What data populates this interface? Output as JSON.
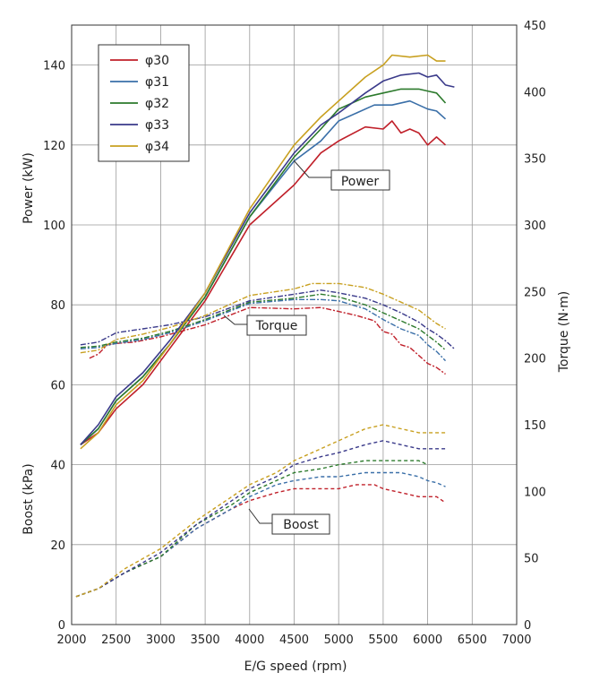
{
  "chart_data": {
    "type": "line",
    "xlabel": "E/G speed (rpm)",
    "ylabel_left_upper": "Power (kW)",
    "ylabel_left_lower": "Boost (kPa)",
    "ylabel_right": "Torque (N·m)",
    "xlim": [
      2000,
      7000
    ],
    "x_ticks": [
      2000,
      2500,
      3000,
      3500,
      4000,
      4500,
      5000,
      5500,
      6000,
      6500,
      7000
    ],
    "left_ticks": [
      0,
      20,
      40,
      60,
      80,
      100,
      120,
      140
    ],
    "right_ticks": [
      0,
      50,
      100,
      150,
      200,
      250,
      300,
      350,
      400,
      450
    ],
    "left_ylim": [
      0,
      150
    ],
    "right_ylim": [
      0,
      450
    ],
    "grid": true,
    "legend_position": "top-left",
    "callouts": [
      {
        "id": "power",
        "label": "Power"
      },
      {
        "id": "torque",
        "label": "Torque"
      },
      {
        "id": "boost",
        "label": "Boost"
      }
    ],
    "colors": {
      "phi30": "#c0202a",
      "phi31": "#3a6fa8",
      "phi32": "#2c7a2c",
      "phi33": "#3a3a8a",
      "phi34": "#c8a020"
    },
    "series": [
      {
        "name": "φ30",
        "key": "phi30",
        "power": {
          "x": [
            2100,
            2300,
            2500,
            2800,
            3100,
            3500,
            4000,
            4500,
            4800,
            5000,
            5300,
            5500,
            5600,
            5700,
            5800,
            5900,
            6000,
            6100,
            6200
          ],
          "y": [
            45,
            48,
            54,
            60,
            69,
            81,
            100,
            110,
            118,
            121,
            124.5,
            124,
            126,
            123,
            124,
            123,
            120,
            122,
            120
          ]
        },
        "torque": {
          "x": [
            2200,
            2300,
            2400,
            2500,
            2700,
            3000,
            3500,
            4000,
            4500,
            4800,
            5000,
            5200,
            5400,
            5500,
            5600,
            5700,
            5800,
            5900,
            6000,
            6100,
            6200
          ],
          "y": [
            200,
            203,
            210,
            211,
            212,
            216,
            225,
            238,
            237,
            238,
            235,
            232,
            228,
            220,
            218,
            210,
            208,
            202,
            196,
            193,
            188
          ]
        },
        "boost": {
          "x": [
            2050,
            2300,
            2600,
            3000,
            3400,
            3800,
            4000,
            4300,
            4500,
            4800,
            5000,
            5200,
            5400,
            5500,
            5700,
            5900,
            6000,
            6100,
            6200
          ],
          "y": [
            7,
            9,
            13,
            17,
            24,
            29,
            31,
            33,
            34,
            34,
            34,
            35,
            35,
            34,
            33,
            32,
            32,
            32,
            30.5
          ]
        }
      },
      {
        "name": "φ31",
        "key": "phi31",
        "power": {
          "x": [
            2100,
            2300,
            2500,
            2800,
            3100,
            3500,
            4000,
            4500,
            4800,
            5000,
            5200,
            5400,
            5600,
            5800,
            6000,
            6100,
            6200
          ],
          "y": [
            45,
            49,
            56,
            62,
            70,
            82,
            102,
            116,
            121,
            126,
            128,
            130,
            130,
            131,
            129,
            128.5,
            126.5
          ]
        },
        "torque": {
          "x": [
            2100,
            2300,
            2500,
            2800,
            3100,
            3500,
            4000,
            4500,
            4800,
            5000,
            5300,
            5500,
            5700,
            5900,
            6000,
            6100,
            6200
          ],
          "y": [
            207,
            208,
            211,
            214,
            219,
            228,
            241,
            244,
            244,
            243,
            237,
            229,
            222,
            217,
            210,
            205,
            198
          ]
        },
        "boost": {
          "x": [
            2050,
            2300,
            2600,
            3000,
            3400,
            3800,
            4000,
            4300,
            4500,
            4800,
            5000,
            5300,
            5500,
            5700,
            5900,
            6000,
            6100,
            6200
          ],
          "y": [
            7,
            9,
            13,
            17,
            24,
            29,
            32,
            35,
            36,
            37,
            37,
            38,
            38,
            38,
            37,
            36,
            35.5,
            34.5
          ]
        }
      },
      {
        "name": "φ32",
        "key": "phi32",
        "power": {
          "x": [
            2100,
            2300,
            2500,
            2800,
            3100,
            3500,
            4000,
            4500,
            4800,
            5000,
            5300,
            5500,
            5700,
            5900,
            6000,
            6100,
            6200
          ],
          "y": [
            45,
            49,
            56,
            62,
            70,
            82,
            102,
            117,
            124,
            129,
            132,
            133,
            134,
            134,
            133.5,
            133,
            130.5
          ]
        },
        "torque": {
          "x": [
            2100,
            2300,
            2500,
            2800,
            3100,
            3500,
            4000,
            4500,
            4800,
            5000,
            5300,
            5500,
            5700,
            5900,
            6000,
            6100,
            6200
          ],
          "y": [
            208,
            209,
            212,
            215,
            220,
            229,
            242,
            245,
            248,
            246,
            240,
            234,
            228,
            222,
            217,
            212,
            206
          ]
        },
        "boost": {
          "x": [
            2050,
            2300,
            2600,
            3000,
            3400,
            3800,
            4000,
            4300,
            4500,
            4800,
            5000,
            5300,
            5500,
            5700,
            5900,
            6000
          ],
          "y": [
            7,
            9,
            13,
            17,
            25,
            30,
            33,
            36,
            38,
            39,
            40,
            41,
            41,
            41,
            41,
            40
          ]
        }
      },
      {
        "name": "φ33",
        "key": "phi33",
        "power": {
          "x": [
            2100,
            2300,
            2500,
            2800,
            3100,
            3500,
            4000,
            4500,
            4800,
            5000,
            5300,
            5500,
            5700,
            5900,
            6000,
            6100,
            6200,
            6300
          ],
          "y": [
            45,
            50,
            57,
            63,
            71,
            83,
            103,
            118,
            125,
            128,
            133,
            136,
            137.5,
            138,
            137,
            137.5,
            135,
            134.5
          ]
        },
        "torque": {
          "x": [
            2100,
            2300,
            2500,
            2800,
            3100,
            3500,
            4000,
            4500,
            4800,
            5000,
            5300,
            5500,
            5700,
            5900,
            6000,
            6100,
            6200,
            6300
          ],
          "y": [
            210,
            212,
            219,
            222,
            225,
            231,
            243,
            248,
            251,
            249,
            245,
            240,
            234,
            227,
            222,
            218,
            213,
            207
          ]
        },
        "boost": {
          "x": [
            2050,
            2300,
            2600,
            3000,
            3400,
            3800,
            4000,
            4300,
            4500,
            4800,
            5000,
            5300,
            5500,
            5700,
            5900,
            6000,
            6100,
            6200
          ],
          "y": [
            7,
            9,
            13,
            18,
            25,
            31,
            34,
            37,
            40,
            42,
            43,
            45,
            46,
            45,
            44,
            44,
            44,
            44
          ]
        }
      },
      {
        "name": "φ34",
        "key": "phi34",
        "power": {
          "x": [
            2100,
            2300,
            2500,
            2800,
            3100,
            3500,
            4000,
            4500,
            4800,
            5000,
            5300,
            5500,
            5600,
            5800,
            6000,
            6100,
            6200
          ],
          "y": [
            44,
            48,
            55,
            61,
            70,
            83,
            104,
            120,
            127,
            131,
            137,
            140,
            142.5,
            142,
            142.5,
            141,
            141
          ]
        },
        "torque": {
          "x": [
            2100,
            2300,
            2500,
            2800,
            3100,
            3500,
            4000,
            4500,
            4700,
            5000,
            5300,
            5500,
            5700,
            5900,
            6000,
            6100,
            6200
          ],
          "y": [
            204,
            206,
            214,
            218,
            223,
            232,
            247,
            252,
            256,
            256,
            253,
            248,
            242,
            236,
            231,
            226,
            222
          ]
        },
        "boost": {
          "x": [
            2050,
            2300,
            2600,
            3000,
            3400,
            3800,
            4000,
            4300,
            4500,
            4800,
            5000,
            5300,
            5500,
            5700,
            5900,
            6000,
            6100,
            6200
          ],
          "y": [
            7,
            9,
            14,
            19,
            26,
            32,
            35,
            38,
            41,
            44,
            46,
            49,
            50,
            49,
            48,
            48,
            48,
            48
          ]
        }
      }
    ]
  }
}
